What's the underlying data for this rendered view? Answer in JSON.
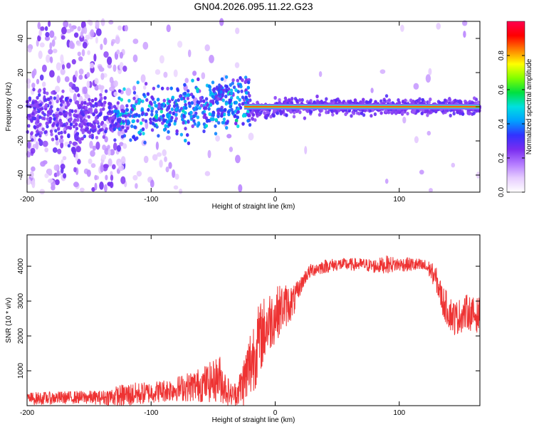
{
  "figure_title": "GN04.2026.095.11.22.G23",
  "chart_data": [
    {
      "type": "heatmap",
      "title": "GN04.2026.095.11.22.G23",
      "xlabel": "Height of straight line (km)",
      "ylabel": "Frequency (Hz)",
      "xlim": [
        -200,
        165
      ],
      "ylim": [
        -50,
        50
      ],
      "xticks": [
        -200,
        -100,
        0,
        100
      ],
      "yticks": [
        -40,
        -20,
        0,
        20,
        40
      ],
      "grid": false,
      "colorbar": {
        "label": "Normalized spectral amplitude",
        "range": [
          0.0,
          1.0
        ],
        "ticks": [
          0.0,
          0.2,
          0.4,
          0.6,
          0.8
        ],
        "tick_labels": [
          "0.0",
          "0.2",
          "0.4",
          "0.6",
          "0.8"
        ],
        "colors": [
          "#ffffff",
          "#e6ccff",
          "#b37aff",
          "#7a2df0",
          "#3232ff",
          "#00a0ff",
          "#00e0e0",
          "#00e040",
          "#80ff00",
          "#ffff00",
          "#ff8000",
          "#ff0000",
          "#ff0050"
        ]
      },
      "features": {
        "noise_region_x": [
          -200,
          -120
        ],
        "line_center_freq_hz": 0,
        "bright_line_x": [
          -25,
          165
        ],
        "spur_x": -45,
        "spur_freq_hz": 10
      }
    },
    {
      "type": "line",
      "title": "",
      "xlabel": "Height of straight line (km)",
      "ylabel": "SNR (10 * v/v)",
      "xlim": [
        -200,
        165
      ],
      "ylim": [
        0,
        4900
      ],
      "xticks": [
        -200,
        -100,
        0,
        100
      ],
      "yticks": [
        1000,
        2000,
        3000,
        4000
      ],
      "grid": false,
      "series": [
        {
          "name": "SNR",
          "color": "#ee3333",
          "x": [
            -200,
            -180,
            -160,
            -140,
            -120,
            -100,
            -80,
            -60,
            -50,
            -45,
            -40,
            -35,
            -30,
            -25,
            -20,
            -15,
            -10,
            -5,
            0,
            5,
            10,
            15,
            20,
            25,
            30,
            40,
            50,
            60,
            70,
            80,
            90,
            100,
            110,
            120,
            125,
            130,
            135,
            140,
            145,
            150,
            155,
            160,
            165
          ],
          "values": [
            200,
            220,
            240,
            230,
            300,
            380,
            480,
            600,
            700,
            800,
            500,
            300,
            400,
            700,
            1200,
            1700,
            2100,
            2400,
            2600,
            2800,
            2900,
            3000,
            3400,
            3750,
            3900,
            4000,
            4050,
            4050,
            4050,
            4000,
            4050,
            4050,
            4050,
            4000,
            3900,
            3600,
            3000,
            2700,
            2500,
            2600,
            2700,
            2600,
            2600
          ],
          "noise": [
            180,
            180,
            180,
            200,
            350,
            300,
            350,
            500,
            600,
            700,
            500,
            300,
            400,
            800,
            1100,
            1100,
            1000,
            900,
            800,
            700,
            600,
            450,
            250,
            200,
            200,
            200,
            180,
            180,
            180,
            200,
            250,
            200,
            200,
            200,
            250,
            350,
            450,
            500,
            500,
            500,
            500,
            500,
            500
          ]
        }
      ]
    }
  ]
}
